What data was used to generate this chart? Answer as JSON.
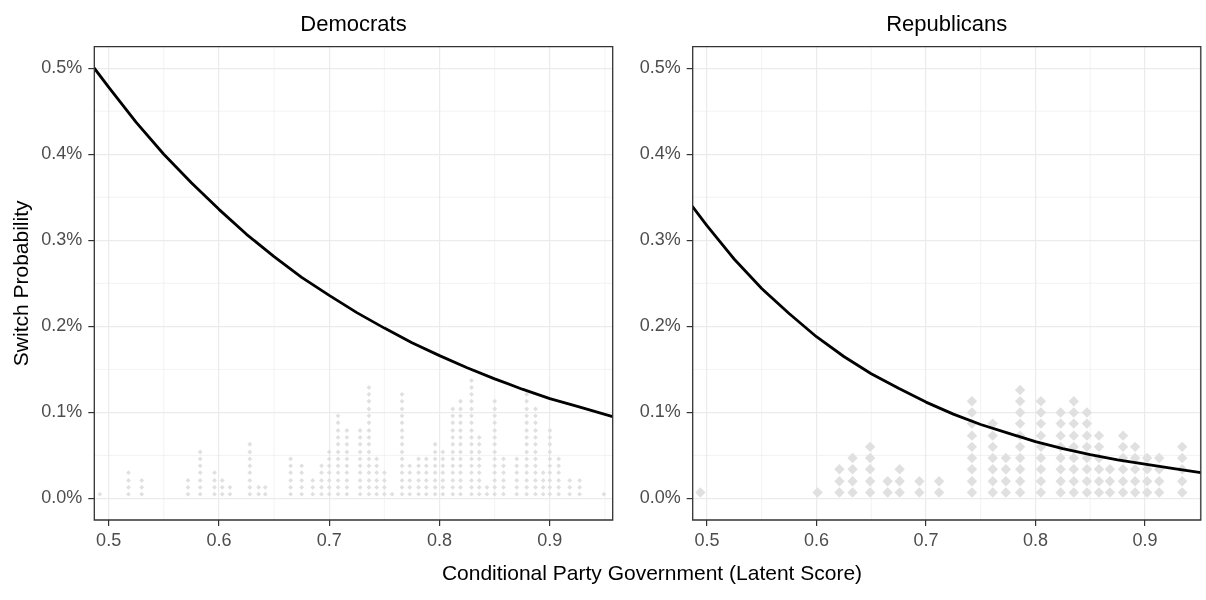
{
  "chart_data": [
    {
      "type": "line",
      "title": "Democrats",
      "xlabel": "Conditional Party Government (Latent Score)",
      "ylabel": "Switch Probability",
      "xlim": [
        0.487,
        0.957
      ],
      "xticks": [
        0.5,
        0.6,
        0.7,
        0.8,
        0.9
      ],
      "ylim": [
        -0.025,
        0.525
      ],
      "yticks": [
        {
          "value": 0,
          "label": "0.0%"
        },
        {
          "value": 0.1,
          "label": "0.1%"
        },
        {
          "value": 0.2,
          "label": "0.2%"
        },
        {
          "value": 0.3,
          "label": "0.3%"
        },
        {
          "value": 0.4,
          "label": "0.4%"
        },
        {
          "value": 0.5,
          "label": "0.5%"
        }
      ],
      "grid": true,
      "series": [
        {
          "type": "scatter",
          "color": "#e0e0e0",
          "marker": "diamond",
          "x": [
            0.492,
            0.518,
            0.518,
            0.518,
            0.518,
            0.53,
            0.53,
            0.53,
            0.572,
            0.572,
            0.572,
            0.583,
            0.583,
            0.583,
            0.583,
            0.583,
            0.583,
            0.583,
            0.596,
            0.596,
            0.596,
            0.596,
            0.603,
            0.603,
            0.603,
            0.61,
            0.61,
            0.628,
            0.628,
            0.628,
            0.628,
            0.628,
            0.628,
            0.628,
            0.628,
            0.636,
            0.636,
            0.642,
            0.642,
            0.665,
            0.665,
            0.665,
            0.665,
            0.665,
            0.665,
            0.675,
            0.675,
            0.675,
            0.675,
            0.675,
            0.685,
            0.685,
            0.685,
            0.693,
            0.693,
            0.693,
            0.693,
            0.693,
            0.7,
            0.7,
            0.7,
            0.7,
            0.7,
            0.7,
            0.7,
            0.708,
            0.708,
            0.708,
            0.708,
            0.708,
            0.708,
            0.708,
            0.708,
            0.708,
            0.708,
            0.708,
            0.708,
            0.716,
            0.716,
            0.716,
            0.716,
            0.716,
            0.716,
            0.716,
            0.716,
            0.716,
            0.716,
            0.728,
            0.728,
            0.728,
            0.728,
            0.728,
            0.728,
            0.728,
            0.728,
            0.728,
            0.728,
            0.736,
            0.736,
            0.736,
            0.736,
            0.736,
            0.736,
            0.736,
            0.736,
            0.736,
            0.736,
            0.736,
            0.736,
            0.736,
            0.736,
            0.736,
            0.736,
            0.743,
            0.743,
            0.743,
            0.743,
            0.743,
            0.743,
            0.75,
            0.75,
            0.75,
            0.75,
            0.757,
            0.766,
            0.766,
            0.766,
            0.766,
            0.766,
            0.766,
            0.766,
            0.766,
            0.766,
            0.766,
            0.766,
            0.766,
            0.766,
            0.766,
            0.766,
            0.773,
            0.773,
            0.773,
            0.773,
            0.773,
            0.781,
            0.781,
            0.781,
            0.781,
            0.781,
            0.781,
            0.788,
            0.788,
            0.788,
            0.788,
            0.788,
            0.788,
            0.796,
            0.796,
            0.796,
            0.796,
            0.796,
            0.796,
            0.796,
            0.796,
            0.803,
            0.803,
            0.803,
            0.803,
            0.803,
            0.803,
            0.803,
            0.812,
            0.812,
            0.812,
            0.812,
            0.812,
            0.812,
            0.812,
            0.812,
            0.812,
            0.812,
            0.812,
            0.812,
            0.812,
            0.819,
            0.819,
            0.819,
            0.819,
            0.819,
            0.819,
            0.819,
            0.819,
            0.819,
            0.819,
            0.819,
            0.819,
            0.819,
            0.819,
            0.829,
            0.829,
            0.829,
            0.829,
            0.829,
            0.829,
            0.829,
            0.829,
            0.829,
            0.829,
            0.829,
            0.829,
            0.829,
            0.829,
            0.829,
            0.829,
            0.829,
            0.836,
            0.836,
            0.836,
            0.836,
            0.836,
            0.836,
            0.836,
            0.836,
            0.836,
            0.843,
            0.843,
            0.85,
            0.85,
            0.85,
            0.85,
            0.85,
            0.85,
            0.85,
            0.85,
            0.85,
            0.85,
            0.85,
            0.85,
            0.85,
            0.85,
            0.858,
            0.858,
            0.858,
            0.858,
            0.858,
            0.858,
            0.87,
            0.87,
            0.87,
            0.87,
            0.87,
            0.87,
            0.879,
            0.879,
            0.879,
            0.879,
            0.879,
            0.879,
            0.879,
            0.879,
            0.879,
            0.879,
            0.879,
            0.879,
            0.879,
            0.879,
            0.879,
            0.887,
            0.887,
            0.887,
            0.887,
            0.887,
            0.887,
            0.887,
            0.887,
            0.887,
            0.887,
            0.887,
            0.887,
            0.887,
            0.894,
            0.894,
            0.894,
            0.894,
            0.9,
            0.9,
            0.9,
            0.9,
            0.9,
            0.9,
            0.9,
            0.9,
            0.9,
            0.9,
            0.908,
            0.908,
            0.908,
            0.908,
            0.908,
            0.908,
            0.918,
            0.918,
            0.918,
            0.927,
            0.927,
            0.927,
            0.949
          ],
          "values": [
            0.005,
            0.005,
            0.013,
            0.021,
            0.03,
            0.005,
            0.013,
            0.021,
            0.005,
            0.013,
            0.021,
            0.005,
            0.013,
            0.021,
            0.03,
            0.038,
            0.046,
            0.054,
            0.005,
            0.013,
            0.021,
            0.03,
            0.005,
            0.013,
            0.021,
            0.005,
            0.013,
            0.005,
            0.013,
            0.021,
            0.03,
            0.038,
            0.046,
            0.054,
            0.063,
            0.005,
            0.013,
            0.005,
            0.013,
            0.005,
            0.013,
            0.021,
            0.03,
            0.038,
            0.046,
            0.005,
            0.013,
            0.021,
            0.03,
            0.038,
            0.005,
            0.013,
            0.021,
            0.005,
            0.013,
            0.021,
            0.03,
            0.038,
            0.005,
            0.013,
            0.021,
            0.03,
            0.038,
            0.046,
            0.054,
            0.005,
            0.013,
            0.021,
            0.03,
            0.038,
            0.046,
            0.054,
            0.063,
            0.071,
            0.079,
            0.088,
            0.096,
            0.005,
            0.013,
            0.021,
            0.03,
            0.038,
            0.046,
            0.054,
            0.063,
            0.071,
            0.079,
            0.005,
            0.013,
            0.021,
            0.03,
            0.038,
            0.046,
            0.054,
            0.063,
            0.071,
            0.079,
            0.005,
            0.013,
            0.021,
            0.03,
            0.038,
            0.046,
            0.054,
            0.063,
            0.071,
            0.079,
            0.088,
            0.096,
            0.104,
            0.113,
            0.121,
            0.129,
            0.005,
            0.013,
            0.021,
            0.03,
            0.038,
            0.046,
            0.005,
            0.013,
            0.021,
            0.03,
            0.005,
            0.005,
            0.013,
            0.021,
            0.03,
            0.038,
            0.046,
            0.054,
            0.063,
            0.071,
            0.079,
            0.088,
            0.096,
            0.104,
            0.113,
            0.121,
            0.005,
            0.013,
            0.021,
            0.03,
            0.038,
            0.005,
            0.013,
            0.021,
            0.03,
            0.038,
            0.046,
            0.005,
            0.013,
            0.021,
            0.03,
            0.038,
            0.046,
            0.005,
            0.013,
            0.021,
            0.03,
            0.038,
            0.046,
            0.054,
            0.063,
            0.005,
            0.013,
            0.021,
            0.03,
            0.038,
            0.046,
            0.054,
            0.005,
            0.013,
            0.021,
            0.03,
            0.038,
            0.046,
            0.054,
            0.063,
            0.071,
            0.079,
            0.088,
            0.096,
            0.104,
            0.005,
            0.013,
            0.021,
            0.03,
            0.038,
            0.046,
            0.054,
            0.063,
            0.071,
            0.079,
            0.088,
            0.096,
            0.104,
            0.113,
            0.005,
            0.013,
            0.021,
            0.03,
            0.038,
            0.046,
            0.054,
            0.063,
            0.071,
            0.079,
            0.088,
            0.096,
            0.104,
            0.113,
            0.121,
            0.129,
            0.137,
            0.005,
            0.013,
            0.021,
            0.03,
            0.038,
            0.046,
            0.054,
            0.063,
            0.071,
            0.005,
            0.013,
            0.005,
            0.013,
            0.021,
            0.03,
            0.038,
            0.046,
            0.054,
            0.063,
            0.071,
            0.079,
            0.088,
            0.096,
            0.104,
            0.113,
            0.005,
            0.013,
            0.021,
            0.03,
            0.038,
            0.046,
            0.005,
            0.013,
            0.021,
            0.03,
            0.038,
            0.046,
            0.005,
            0.013,
            0.021,
            0.03,
            0.038,
            0.046,
            0.054,
            0.063,
            0.071,
            0.079,
            0.088,
            0.096,
            0.104,
            0.113,
            0.121,
            0.005,
            0.013,
            0.021,
            0.03,
            0.038,
            0.046,
            0.054,
            0.063,
            0.071,
            0.079,
            0.088,
            0.096,
            0.104,
            0.005,
            0.013,
            0.021,
            0.03,
            0.005,
            0.013,
            0.021,
            0.03,
            0.038,
            0.046,
            0.054,
            0.063,
            0.071,
            0.079,
            0.005,
            0.013,
            0.021,
            0.03,
            0.038,
            0.046,
            0.005,
            0.013,
            0.021,
            0.005,
            0.013,
            0.021,
            0.005
          ]
        },
        {
          "color": "#000000",
          "x": [
            0.487,
            0.5,
            0.525,
            0.55,
            0.575,
            0.6,
            0.625,
            0.65,
            0.675,
            0.7,
            0.725,
            0.75,
            0.775,
            0.8,
            0.825,
            0.85,
            0.875,
            0.9,
            0.925,
            0.957
          ],
          "values": [
            0.5,
            0.478,
            0.437,
            0.4,
            0.367,
            0.336,
            0.307,
            0.281,
            0.257,
            0.236,
            0.216,
            0.198,
            0.181,
            0.166,
            0.152,
            0.139,
            0.127,
            0.116,
            0.107,
            0.095
          ]
        }
      ]
    },
    {
      "type": "line",
      "title": "Republicans",
      "xlim": [
        0.487,
        0.951
      ],
      "xticks": [
        0.5,
        0.6,
        0.7,
        0.8,
        0.9
      ],
      "ylim": [
        -0.025,
        0.525
      ],
      "yticks": [
        {
          "value": 0,
          "label": "0.0%"
        },
        {
          "value": 0.1,
          "label": "0.1%"
        },
        {
          "value": 0.2,
          "label": "0.2%"
        },
        {
          "value": 0.3,
          "label": "0.3%"
        },
        {
          "value": 0.4,
          "label": "0.4%"
        },
        {
          "value": 0.5,
          "label": "0.5%"
        }
      ],
      "grid": true,
      "series": [
        {
          "type": "scatter",
          "color": "#e0e0e0",
          "marker": "diamond",
          "x": [
            0.494,
            0.601,
            0.621,
            0.621,
            0.621,
            0.633,
            0.633,
            0.633,
            0.633,
            0.649,
            0.649,
            0.649,
            0.649,
            0.649,
            0.665,
            0.665,
            0.676,
            0.676,
            0.676,
            0.694,
            0.694,
            0.712,
            0.712,
            0.742,
            0.742,
            0.742,
            0.742,
            0.742,
            0.742,
            0.742,
            0.742,
            0.742,
            0.761,
            0.761,
            0.761,
            0.761,
            0.761,
            0.761,
            0.761,
            0.773,
            0.773,
            0.773,
            0.773,
            0.786,
            0.786,
            0.786,
            0.786,
            0.786,
            0.786,
            0.786,
            0.786,
            0.786,
            0.786,
            0.805,
            0.805,
            0.805,
            0.805,
            0.805,
            0.805,
            0.805,
            0.805,
            0.805,
            0.823,
            0.823,
            0.823,
            0.823,
            0.823,
            0.823,
            0.823,
            0.823,
            0.835,
            0.835,
            0.835,
            0.835,
            0.835,
            0.835,
            0.835,
            0.835,
            0.835,
            0.847,
            0.847,
            0.847,
            0.847,
            0.847,
            0.847,
            0.847,
            0.847,
            0.858,
            0.858,
            0.858,
            0.858,
            0.858,
            0.858,
            0.868,
            0.868,
            0.868,
            0.88,
            0.88,
            0.88,
            0.88,
            0.88,
            0.88,
            0.891,
            0.891,
            0.891,
            0.891,
            0.891,
            0.902,
            0.902,
            0.902,
            0.902,
            0.913,
            0.913,
            0.913,
            0.913,
            0.934,
            0.934,
            0.934,
            0.934,
            0.934
          ],
          "values": [
            0.007,
            0.007,
            0.007,
            0.02,
            0.034,
            0.007,
            0.02,
            0.034,
            0.047,
            0.007,
            0.02,
            0.034,
            0.047,
            0.06,
            0.007,
            0.02,
            0.007,
            0.02,
            0.034,
            0.007,
            0.02,
            0.007,
            0.02,
            0.007,
            0.02,
            0.034,
            0.047,
            0.06,
            0.073,
            0.087,
            0.1,
            0.113,
            0.007,
            0.02,
            0.034,
            0.047,
            0.06,
            0.073,
            0.087,
            0.007,
            0.02,
            0.034,
            0.047,
            0.007,
            0.02,
            0.034,
            0.047,
            0.06,
            0.073,
            0.087,
            0.1,
            0.113,
            0.126,
            0.007,
            0.02,
            0.034,
            0.047,
            0.06,
            0.073,
            0.087,
            0.1,
            0.113,
            0.007,
            0.02,
            0.034,
            0.047,
            0.06,
            0.073,
            0.087,
            0.1,
            0.007,
            0.02,
            0.034,
            0.047,
            0.06,
            0.073,
            0.087,
            0.1,
            0.113,
            0.007,
            0.02,
            0.034,
            0.047,
            0.06,
            0.073,
            0.087,
            0.1,
            0.007,
            0.02,
            0.034,
            0.047,
            0.06,
            0.073,
            0.007,
            0.02,
            0.034,
            0.007,
            0.02,
            0.034,
            0.047,
            0.06,
            0.073,
            0.007,
            0.02,
            0.034,
            0.047,
            0.06,
            0.007,
            0.02,
            0.034,
            0.047,
            0.007,
            0.02,
            0.034,
            0.047,
            0.007,
            0.02,
            0.034,
            0.047,
            0.06
          ]
        },
        {
          "color": "#000000",
          "x": [
            0.487,
            0.5,
            0.525,
            0.55,
            0.575,
            0.6,
            0.625,
            0.65,
            0.675,
            0.7,
            0.725,
            0.75,
            0.775,
            0.8,
            0.825,
            0.85,
            0.875,
            0.9,
            0.925,
            0.951
          ],
          "values": [
            0.339,
            0.317,
            0.278,
            0.244,
            0.215,
            0.188,
            0.165,
            0.145,
            0.128,
            0.112,
            0.098,
            0.086,
            0.076,
            0.066,
            0.058,
            0.051,
            0.045,
            0.04,
            0.035,
            0.03
          ]
        }
      ]
    }
  ]
}
